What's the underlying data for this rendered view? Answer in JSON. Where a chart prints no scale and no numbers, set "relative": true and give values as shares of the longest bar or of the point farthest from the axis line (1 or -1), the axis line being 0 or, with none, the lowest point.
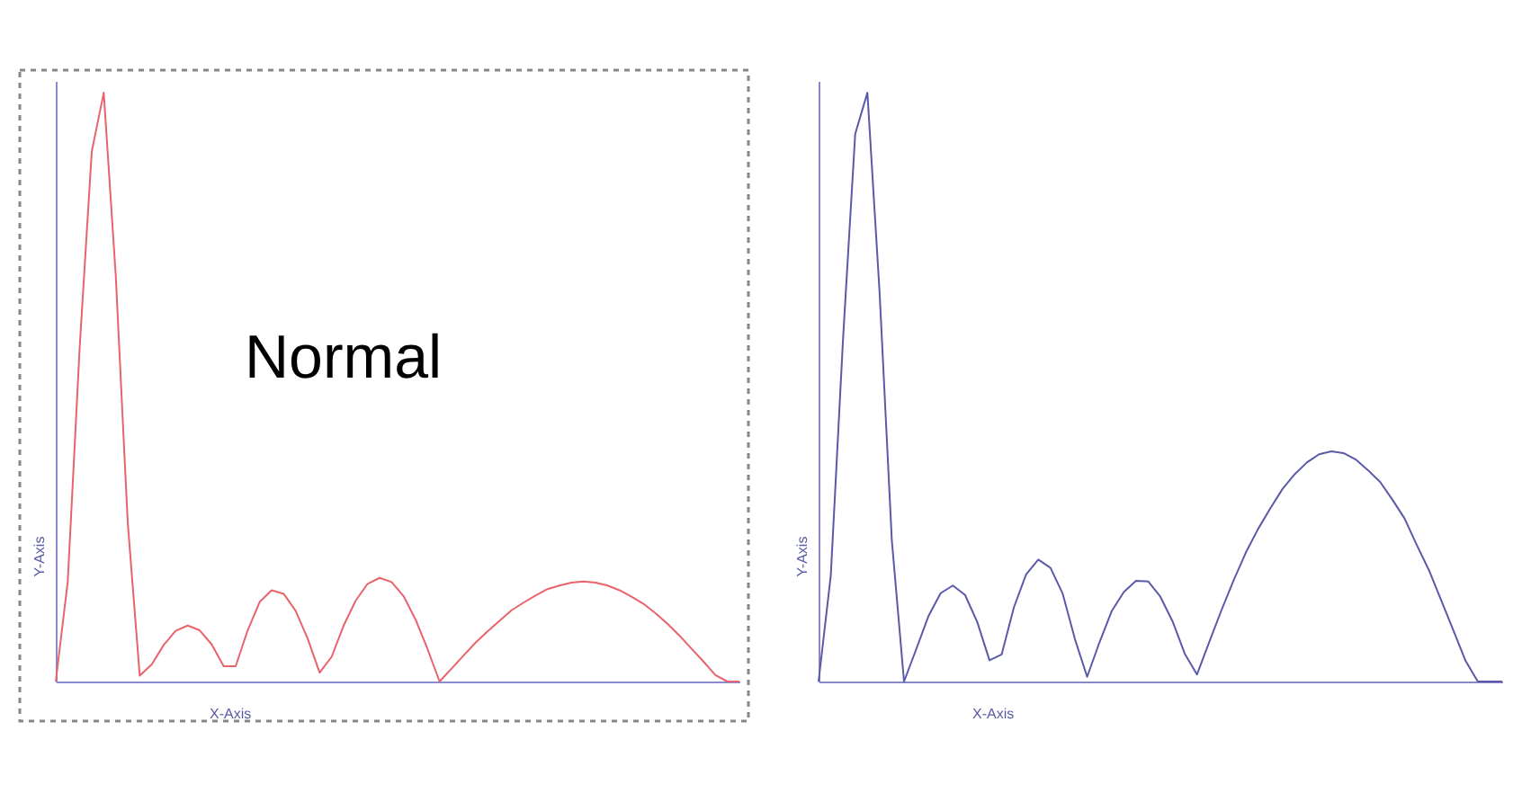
{
  "chart_data": [
    {
      "type": "line",
      "relative": true,
      "tick_labels": false,
      "grid": false,
      "xlabel": "X-Axis",
      "ylabel": "Y-Axis",
      "annotations": [
        "Normal"
      ],
      "categories": [
        null,
        null,
        null,
        null,
        null,
        null,
        null,
        null,
        null,
        null,
        null,
        null,
        null,
        null,
        null,
        null,
        null,
        null,
        null,
        null,
        null,
        null,
        null,
        null,
        null,
        null,
        null,
        null,
        null,
        null,
        null,
        null,
        null,
        null,
        null,
        null,
        null,
        null,
        null,
        null,
        null,
        null,
        null,
        null,
        null,
        null,
        null,
        null,
        null,
        null,
        null,
        null,
        null,
        null,
        null,
        null,
        null,
        null
      ],
      "series": [
        {
          "color": "#e8636b",
          "values": [
            0,
            0.17,
            0.57,
            0.9,
            1.0,
            0.69,
            0.27,
            0.01,
            0.029,
            0.062,
            0.086,
            0.095,
            0.087,
            0.063,
            0.026,
            0.026,
            0.087,
            0.135,
            0.155,
            0.149,
            0.12,
            0.073,
            0.015,
            0.042,
            0.095,
            0.137,
            0.166,
            0.176,
            0.169,
            0.145,
            0.105,
            0.055,
            0,
            0.022,
            0.044,
            0.066,
            0.085,
            0.103,
            0.121,
            0.134,
            0.146,
            0.157,
            0.163,
            0.168,
            0.17,
            0.168,
            0.163,
            0.155,
            0.144,
            0.132,
            0.116,
            0.098,
            0.078,
            0.056,
            0.034,
            0.011,
            0,
            0
          ]
        }
      ]
    },
    {
      "type": "line",
      "relative": true,
      "tick_labels": false,
      "grid": false,
      "xlabel": "X-Axis",
      "ylabel": "Y-Axis",
      "categories": [
        null,
        null,
        null,
        null,
        null,
        null,
        null,
        null,
        null,
        null,
        null,
        null,
        null,
        null,
        null,
        null,
        null,
        null,
        null,
        null,
        null,
        null,
        null,
        null,
        null,
        null,
        null,
        null,
        null,
        null,
        null,
        null,
        null,
        null,
        null,
        null,
        null,
        null,
        null,
        null,
        null,
        null,
        null,
        null,
        null,
        null,
        null,
        null,
        null,
        null,
        null,
        null,
        null,
        null,
        null,
        null,
        null
      ],
      "series": [
        {
          "color": "#5a5aa8",
          "values": [
            0,
            0.18,
            0.58,
            0.93,
            1.0,
            0.66,
            0.24,
            0,
            0.055,
            0.111,
            0.15,
            0.163,
            0.147,
            0.101,
            0.036,
            0.046,
            0.126,
            0.182,
            0.207,
            0.193,
            0.149,
            0.072,
            0.008,
            0.066,
            0.119,
            0.152,
            0.171,
            0.17,
            0.144,
            0.102,
            0.047,
            0.012,
            0.067,
            0.121,
            0.172,
            0.219,
            0.259,
            0.294,
            0.327,
            0.352,
            0.372,
            0.386,
            0.391,
            0.388,
            0.377,
            0.359,
            0.339,
            0.309,
            0.277,
            0.232,
            0.189,
            0.138,
            0.087,
            0.035,
            0,
            0,
            0
          ]
        }
      ]
    }
  ]
}
